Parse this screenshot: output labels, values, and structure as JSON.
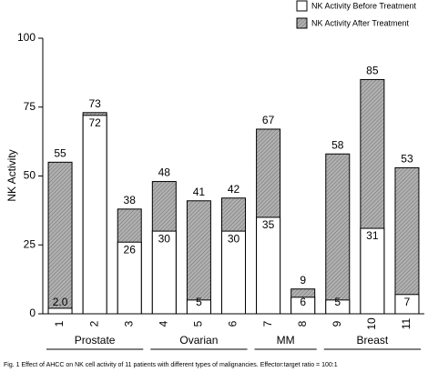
{
  "chart_data": {
    "type": "overlap_bar",
    "y_label": "NK Activity",
    "caption": "Fig. 1  Effect of AHCC on NK cell activity of 11 patients with different types of malignancies. Effector:target ratio = 100:1",
    "categories": [
      "1",
      "2",
      "3",
      "4",
      "5",
      "6",
      "7",
      "8",
      "9",
      "10",
      "11"
    ],
    "groups": [
      {
        "label": "Prostate",
        "span": 3
      },
      {
        "label": "Ovarian",
        "span": 3
      },
      {
        "label": "MM",
        "span": 2
      },
      {
        "label": "Breast",
        "span": 3
      }
    ],
    "series": [
      {
        "name": "NK Activity After Treatment",
        "color": "#9a9a9a",
        "values": [
          55,
          73,
          38,
          48,
          41,
          42,
          67,
          9,
          58,
          85,
          53
        ]
      },
      {
        "name": "NK Activity Before Treatment",
        "color": "#ffffff",
        "values": [
          2,
          72,
          26,
          30,
          5,
          30,
          35,
          6,
          5,
          31,
          7
        ],
        "value_labels": [
          "2.0",
          "72",
          "26",
          "30",
          "5",
          "30",
          "35",
          "6",
          "5",
          "31",
          "7"
        ]
      }
    ],
    "ylim": [
      0,
      100
    ],
    "yticks": [
      0,
      25,
      50,
      75,
      100
    ],
    "legend": "top-right"
  }
}
